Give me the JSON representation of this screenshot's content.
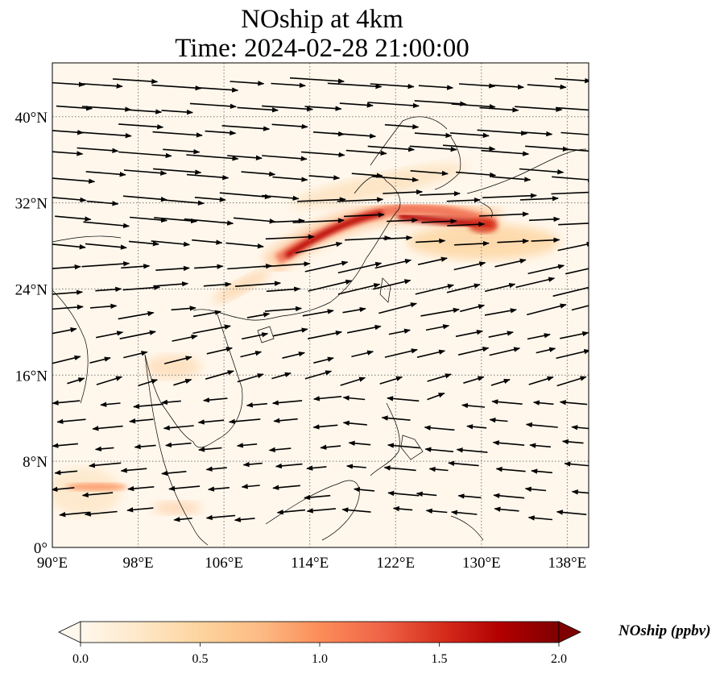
{
  "title": {
    "line1": "NOship at 4km",
    "line2": "Time: 2024-02-28 21:00:00"
  },
  "map": {
    "extent": {
      "lon_min": 90,
      "lon_max": 140,
      "lat_min": 0,
      "lat_max": 45
    },
    "lon_ticks": [
      {
        "value": 90,
        "label": "90°E"
      },
      {
        "value": 98,
        "label": "98°E"
      },
      {
        "value": 106,
        "label": "106°E"
      },
      {
        "value": 114,
        "label": "114°E"
      },
      {
        "value": 122,
        "label": "122°E"
      },
      {
        "value": 130,
        "label": "130°E"
      },
      {
        "value": 138,
        "label": "138°E"
      }
    ],
    "lat_ticks": [
      {
        "value": 0,
        "label": "0°"
      },
      {
        "value": 8,
        "label": "8°N"
      },
      {
        "value": 16,
        "label": "16°N"
      },
      {
        "value": 24,
        "label": "24°N"
      },
      {
        "value": 32,
        "label": "32°N"
      },
      {
        "value": 40,
        "label": "40°N"
      }
    ],
    "gridlines": "dotted",
    "field": "NOship concentration",
    "vectors": "wind"
  },
  "colorbar": {
    "label": "NOship (ppbv)",
    "min": 0.0,
    "max": 2.0,
    "ticks": [
      {
        "value": 0.0,
        "label": "0.0"
      },
      {
        "value": 0.5,
        "label": "0.5"
      },
      {
        "value": 1.0,
        "label": "1.0"
      },
      {
        "value": 1.5,
        "label": "1.5"
      },
      {
        "value": 2.0,
        "label": "2.0"
      }
    ],
    "colormap": "OrRd",
    "extend": "both",
    "colors": [
      "#fff7ec",
      "#fee8c8",
      "#fdd49e",
      "#fdbb84",
      "#fc8d59",
      "#ef6548",
      "#d7301f",
      "#b30000",
      "#7f0000"
    ]
  },
  "chart_data": {
    "type": "heatmap",
    "title": "NOship at 4km\nTime: 2024-02-28 21:00:00",
    "xlabel": "",
    "ylabel": "",
    "xlim": [
      90,
      140
    ],
    "ylim": [
      0,
      45
    ],
    "grid": true,
    "legend": "colorbar bottom",
    "hotspots": [
      {
        "lon": 114.5,
        "lat": 28.8,
        "value": 2.0
      },
      {
        "lon": 117.5,
        "lat": 30.5,
        "value": 2.0
      },
      {
        "lon": 121.5,
        "lat": 30.8,
        "value": 1.8
      },
      {
        "lon": 126.0,
        "lat": 30.2,
        "value": 1.7
      },
      {
        "lon": 129.5,
        "lat": 29.8,
        "value": 1.8
      },
      {
        "lon": 132.0,
        "lat": 28.5,
        "value": 0.9
      },
      {
        "lon": 110.0,
        "lat": 26.0,
        "value": 0.8
      },
      {
        "lon": 92.5,
        "lat": 5.8,
        "value": 0.7
      },
      {
        "lon": 100.5,
        "lat": 16.8,
        "value": 0.4
      }
    ]
  }
}
